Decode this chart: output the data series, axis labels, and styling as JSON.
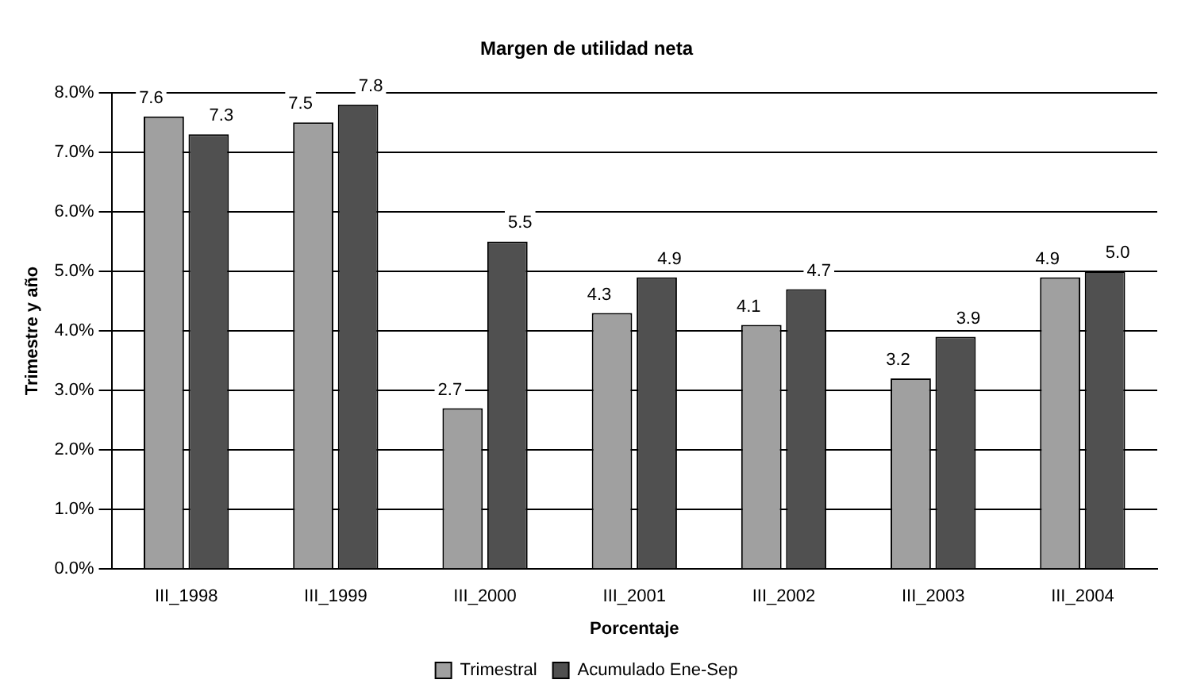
{
  "chart_data": {
    "type": "bar",
    "title": "Margen de utilidad neta",
    "xlabel": "Porcentaje",
    "ylabel": "Trimestre y año",
    "categories": [
      "III_1998",
      "III_1999",
      "III_2000",
      "III_2001",
      "III_2002",
      "III_2003",
      "III_2004"
    ],
    "series": [
      {
        "name": "Trimestral",
        "color": "#a0a0a0",
        "values": [
          7.6,
          7.5,
          2.7,
          4.3,
          4.1,
          3.2,
          4.9
        ],
        "value_labels": [
          "7.6",
          "7.5",
          "2.7",
          "4.3",
          "4.1",
          "3.2",
          "4.9"
        ]
      },
      {
        "name": "Acumulado Ene-Sep",
        "color": "#505050",
        "values": [
          7.3,
          7.8,
          5.5,
          4.9,
          4.7,
          3.9,
          5.0
        ],
        "value_labels": [
          "7.3",
          "7.8",
          "5.5",
          "4.9",
          "4.7",
          "3.9",
          "5.0"
        ]
      }
    ],
    "ylim": [
      0,
      8
    ],
    "yticks": [
      {
        "value": 0,
        "label": "0.0%"
      },
      {
        "value": 1,
        "label": "1.0%"
      },
      {
        "value": 2,
        "label": "2.0%"
      },
      {
        "value": 3,
        "label": "3.0%"
      },
      {
        "value": 4,
        "label": "4.0%"
      },
      {
        "value": 5,
        "label": "5.0%"
      },
      {
        "value": 6,
        "label": "6.0%"
      },
      {
        "value": 7,
        "label": "7.0%"
      },
      {
        "value": 8,
        "label": "8.0%"
      }
    ],
    "grid": "y",
    "legend": "bottom"
  }
}
